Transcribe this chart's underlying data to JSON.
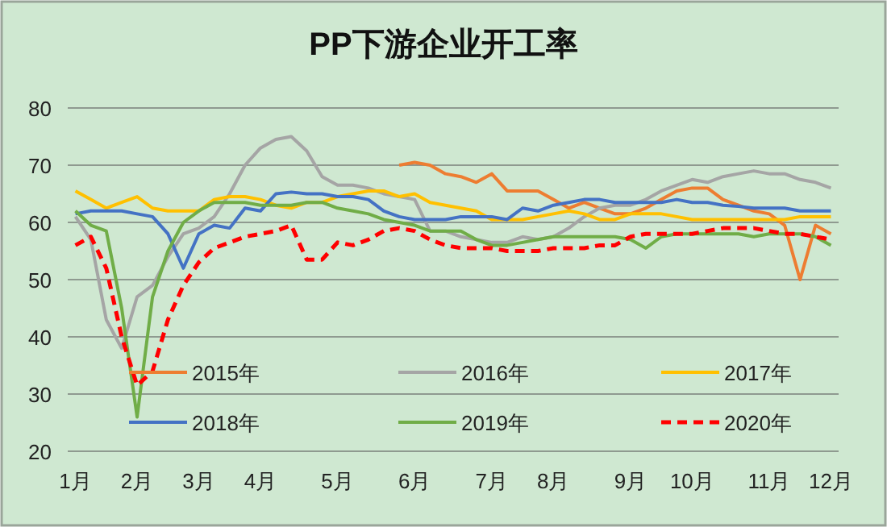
{
  "chart_data": {
    "type": "line",
    "title": "PP下游企业开工率",
    "categories": [
      "1月",
      null,
      null,
      null,
      "2月",
      null,
      null,
      null,
      "3月",
      null,
      null,
      null,
      "4月",
      null,
      null,
      null,
      null,
      "5月",
      null,
      null,
      null,
      null,
      "6月",
      null,
      null,
      null,
      null,
      "7月",
      null,
      null,
      null,
      "8月",
      null,
      null,
      null,
      null,
      "9月",
      null,
      null,
      null,
      "10月",
      null,
      null,
      null,
      null,
      "11月",
      null,
      null,
      null,
      "12月"
    ],
    "ylim": [
      20,
      80
    ],
    "yticks": [
      20,
      30,
      40,
      50,
      60,
      70,
      80
    ],
    "grid": "y",
    "legend": "bottom",
    "line_style": "solid",
    "marker": "none",
    "series": [
      {
        "name": "2015年",
        "color": "#ed7d31",
        "values": [
          null,
          null,
          null,
          null,
          null,
          null,
          null,
          null,
          null,
          null,
          null,
          null,
          null,
          null,
          null,
          null,
          null,
          null,
          null,
          null,
          null,
          70,
          70.5,
          70,
          68.5,
          68,
          67,
          68.5,
          65.5,
          65.5,
          65.5,
          64,
          62.5,
          63.5,
          62.5,
          61.5,
          61.5,
          62.5,
          64,
          65.5,
          66,
          66,
          64,
          63,
          62,
          61.5,
          59.5,
          50,
          59.5,
          58
        ]
      },
      {
        "name": "2016年",
        "color": "#a5a5a5",
        "values": [
          61,
          57,
          43,
          38,
          47,
          49,
          54,
          58,
          59,
          61,
          65,
          70,
          73,
          74.5,
          75,
          72.5,
          68,
          66.5,
          66.5,
          66,
          65,
          64.5,
          64,
          58.5,
          58.5,
          57.5,
          57,
          56.5,
          56.5,
          57.5,
          57,
          57.5,
          59,
          61,
          62.5,
          63,
          63,
          64,
          65.5,
          66.5,
          67.5,
          67,
          68,
          68.5,
          69,
          68.5,
          68.5,
          67.5,
          67,
          66
        ]
      },
      {
        "name": "2017年",
        "color": "#ffc000",
        "values": [
          65.5,
          64,
          62.5,
          63.5,
          64.5,
          62.5,
          62,
          62,
          62,
          64,
          64.5,
          64.5,
          64,
          63,
          62.5,
          63.5,
          63.5,
          64.5,
          65,
          65.5,
          65.5,
          64.5,
          65,
          63.5,
          63,
          62.5,
          62,
          60.5,
          60.5,
          60.5,
          61,
          61.5,
          62,
          61.5,
          60.5,
          60.5,
          61.5,
          61.5,
          61.5,
          61,
          60.5,
          60.5,
          60.5,
          60.5,
          60.5,
          60.5,
          60.5,
          61,
          61,
          61
        ]
      },
      {
        "name": "2018年",
        "color": "#4472c4",
        "values": [
          61.5,
          62,
          62,
          62,
          61.5,
          61,
          58,
          52,
          58,
          59.5,
          59,
          62.5,
          62,
          65,
          65.3,
          65,
          65,
          64.5,
          64.5,
          64,
          62,
          61,
          60.5,
          60.5,
          60.5,
          61,
          61,
          61,
          60.5,
          62.5,
          62,
          63,
          63.5,
          64,
          64,
          63.5,
          63.5,
          63.5,
          63.5,
          64,
          63.5,
          63.5,
          63,
          62.8,
          62.5,
          62.5,
          62.5,
          62,
          62,
          62
        ]
      },
      {
        "name": "2019年",
        "color": "#70ad47",
        "values": [
          62,
          59.5,
          58.5,
          45,
          26,
          47,
          55,
          60,
          62,
          63.5,
          63.5,
          63.5,
          63,
          63,
          63,
          63.5,
          63.5,
          62.5,
          62,
          61.5,
          60.5,
          60,
          59.5,
          58.5,
          58.5,
          58.5,
          57,
          56,
          56,
          56.5,
          57,
          57.5,
          57.5,
          57.5,
          57.5,
          57.5,
          57,
          55.5,
          57.5,
          58,
          58,
          58,
          58,
          58,
          57.5,
          58,
          58,
          58,
          57.5,
          56
        ]
      },
      {
        "name": "2020年",
        "color": "#ff0000",
        "line_style": "dashed",
        "values": [
          56,
          57.5,
          52,
          40,
          31.5,
          34,
          43,
          49,
          53,
          55.5,
          56.5,
          57.5,
          58,
          58.5,
          59.5,
          53.5,
          53.5,
          56.5,
          56,
          57,
          58.5,
          59,
          58.5,
          57,
          56,
          55.5,
          55.5,
          55.5,
          55,
          55,
          55,
          55.5,
          55.5,
          55.5,
          56,
          56,
          57.5,
          58,
          58,
          58,
          58,
          58.5,
          59,
          59,
          59,
          58.5,
          58,
          58,
          57.5,
          57
        ]
      }
    ]
  }
}
